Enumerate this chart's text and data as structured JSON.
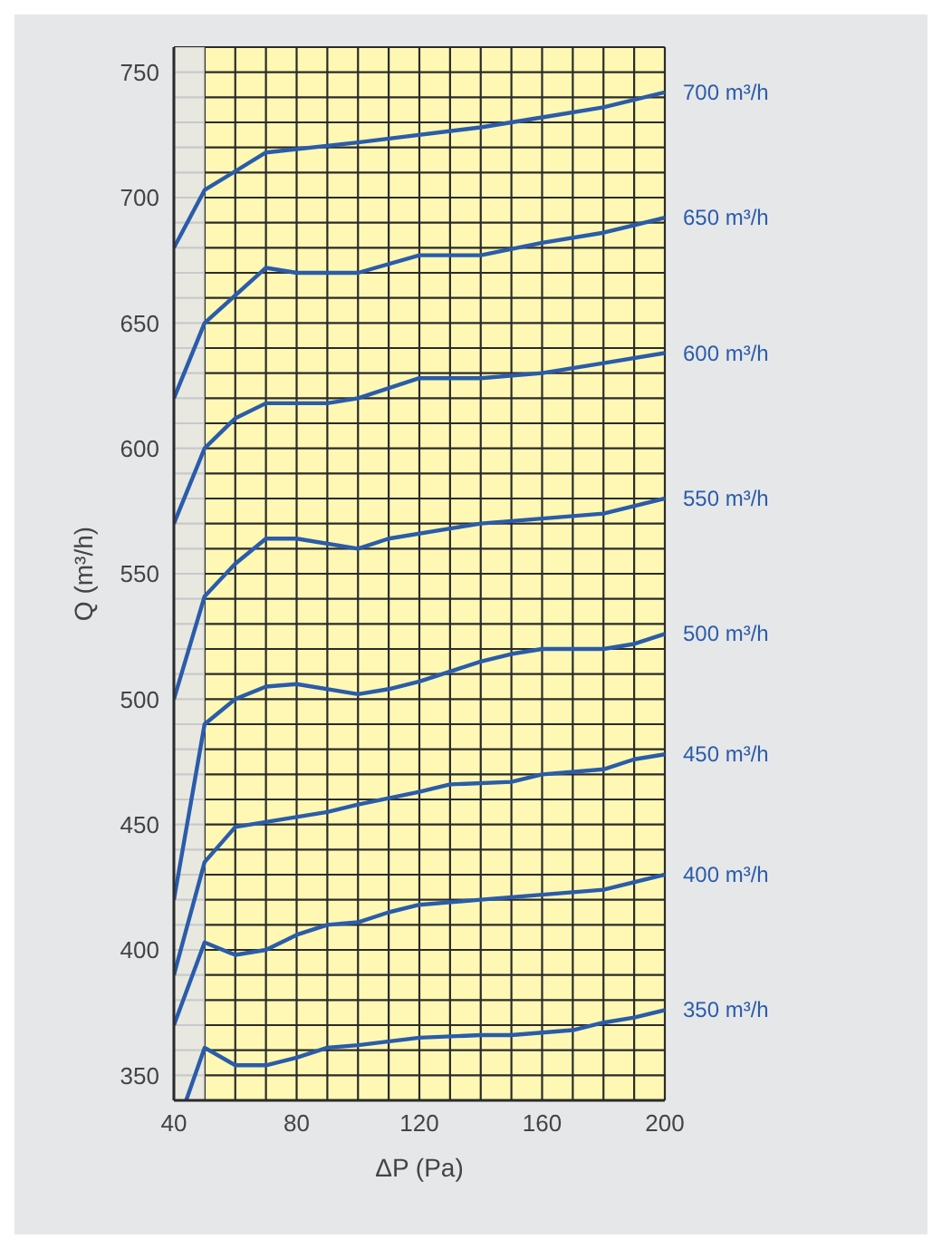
{
  "chart_data": {
    "type": "line",
    "xlabel": "ΔP (Pa)",
    "ylabel": "Q (m³/h)",
    "xlim": [
      40,
      200
    ],
    "ylim": [
      340,
      760
    ],
    "xticks": [
      40,
      {
        "value": 50,
        "label": null
      },
      {
        "value": 60,
        "label": null
      },
      {
        "value": 70,
        "label": null
      },
      80,
      {
        "value": 90,
        "label": null
      },
      {
        "value": 100,
        "label": null
      },
      {
        "value": 110,
        "label": null
      },
      120,
      {
        "value": 130,
        "label": null
      },
      {
        "value": 140,
        "label": null
      },
      {
        "value": 150,
        "label": null
      },
      160,
      {
        "value": 170,
        "label": null
      },
      {
        "value": 180,
        "label": null
      },
      {
        "value": 190,
        "label": null
      },
      200
    ],
    "yticks": [
      {
        "value": 340,
        "label": null
      },
      350,
      {
        "value": 360,
        "label": null
      },
      {
        "value": 370,
        "label": null
      },
      {
        "value": 380,
        "label": null
      },
      {
        "value": 390,
        "label": null
      },
      400,
      {
        "value": 410,
        "label": null
      },
      {
        "value": 420,
        "label": null
      },
      {
        "value": 430,
        "label": null
      },
      {
        "value": 440,
        "label": null
      },
      450,
      {
        "value": 460,
        "label": null
      },
      {
        "value": 470,
        "label": null
      },
      {
        "value": 480,
        "label": null
      },
      {
        "value": 490,
        "label": null
      },
      500,
      {
        "value": 510,
        "label": null
      },
      {
        "value": 520,
        "label": null
      },
      {
        "value": 530,
        "label": null
      },
      {
        "value": 540,
        "label": null
      },
      550,
      {
        "value": 560,
        "label": null
      },
      {
        "value": 570,
        "label": null
      },
      {
        "value": 580,
        "label": null
      },
      {
        "value": 590,
        "label": null
      },
      600,
      {
        "value": 610,
        "label": null
      },
      {
        "value": 620,
        "label": null
      },
      {
        "value": 630,
        "label": null
      },
      {
        "value": 640,
        "label": null
      },
      650,
      {
        "value": 660,
        "label": null
      },
      {
        "value": 670,
        "label": null
      },
      {
        "value": 680,
        "label": null
      },
      {
        "value": 690,
        "label": null
      },
      700,
      {
        "value": 710,
        "label": null
      },
      {
        "value": 720,
        "label": null
      },
      {
        "value": 730,
        "label": null
      },
      {
        "value": 740,
        "label": null
      },
      750,
      {
        "value": 760,
        "label": null
      }
    ],
    "grid": true,
    "marker": "none",
    "line_style": "solid",
    "bands": [
      {
        "axis": "x",
        "from": 40,
        "to": 50,
        "color": "#e4e5e8"
      }
    ],
    "series": [
      {
        "name": "700 m³/h",
        "color": "#2a5caa",
        "x": [
          40,
          50,
          70,
          100,
          140,
          160,
          180,
          200
        ],
        "values": [
          680,
          703,
          718,
          722,
          728,
          732,
          736,
          742
        ]
      },
      {
        "name": "650 m³/h",
        "color": "#2a5caa",
        "x": [
          40,
          50,
          70,
          80,
          100,
          120,
          140,
          160,
          180,
          200
        ],
        "values": [
          620,
          650,
          672,
          670,
          670,
          677,
          677,
          682,
          686,
          692
        ]
      },
      {
        "name": "600 m³/h",
        "color": "#2a5caa",
        "x": [
          40,
          50,
          60,
          70,
          90,
          100,
          120,
          140,
          160,
          180,
          200
        ],
        "values": [
          570,
          600,
          612,
          618,
          618,
          620,
          628,
          628,
          630,
          634,
          638
        ]
      },
      {
        "name": "550 m³/h",
        "color": "#2a5caa",
        "x": [
          40,
          50,
          60,
          70,
          80,
          100,
          110,
          130,
          140,
          160,
          180,
          200
        ],
        "values": [
          500,
          541,
          554,
          564,
          564,
          560,
          564,
          568,
          570,
          572,
          574,
          580
        ]
      },
      {
        "name": "500 m³/h",
        "color": "#2a5caa",
        "x": [
          40,
          50,
          60,
          70,
          80,
          100,
          110,
          120,
          130,
          140,
          150,
          160,
          180,
          190,
          200
        ],
        "values": [
          420,
          490,
          500,
          505,
          506,
          502,
          504,
          507,
          511,
          515,
          518,
          520,
          520,
          522,
          526
        ]
      },
      {
        "name": "450 m³/h",
        "color": "#2a5caa",
        "x": [
          40,
          50,
          60,
          70,
          90,
          100,
          120,
          130,
          150,
          160,
          180,
          190,
          200
        ],
        "values": [
          390,
          435,
          449,
          451,
          455,
          458,
          463,
          466,
          467,
          470,
          472,
          476,
          478
        ]
      },
      {
        "name": "400 m³/h",
        "color": "#2a5caa",
        "x": [
          40,
          50,
          60,
          70,
          80,
          90,
          100,
          110,
          120,
          140,
          160,
          180,
          200
        ],
        "values": [
          370,
          403,
          398,
          400,
          406,
          410,
          411,
          415,
          418,
          420,
          422,
          424,
          430
        ]
      },
      {
        "name": "350 m³/h",
        "color": "#2a5caa",
        "x": [
          44,
          50,
          60,
          70,
          80,
          90,
          100,
          120,
          140,
          150,
          170,
          180,
          190,
          200
        ],
        "values": [
          340,
          361,
          354,
          354,
          357,
          361,
          362,
          365,
          366,
          366,
          368,
          371,
          373,
          376
        ]
      }
    ]
  }
}
